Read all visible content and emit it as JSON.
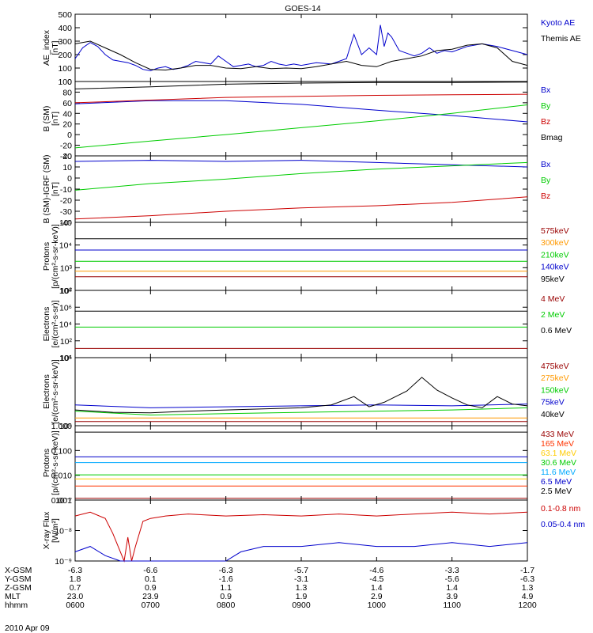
{
  "title": "GOES-14",
  "date": "2010 Apr 09",
  "footer": {
    "row_labels": [
      "X-GSM",
      "Y-GSM",
      "Z-GSM",
      "MLT",
      "hhmm"
    ],
    "columns": [
      [
        "-6.3",
        "1.8",
        "0.7",
        "23.0",
        "0600"
      ],
      [
        "-6.6",
        "0.1",
        "0.9",
        "23.9",
        "0700"
      ],
      [
        "-6.3",
        "-1.6",
        "1.1",
        "0.9",
        "0800"
      ],
      [
        "-5.7",
        "-3.1",
        "1.3",
        "1.9",
        "0900"
      ],
      [
        "-4.6",
        "-4.5",
        "1.4",
        "2.9",
        "1000"
      ],
      [
        "-3.3",
        "-5.6",
        "1.4",
        "3.9",
        "1100"
      ],
      [
        "-1.7",
        "-6.3",
        "1.3",
        "4.9",
        "1200"
      ]
    ]
  },
  "chart_data": [
    {
      "type": "line",
      "id": "ae",
      "ylabel_lines": [
        "AE_index",
        "[nT]"
      ],
      "ylim": [
        0,
        500
      ],
      "yscale": "linear",
      "yticks": [
        "0",
        "100",
        "200",
        "300",
        "400",
        "500"
      ],
      "xlim": [
        6.0,
        12.0
      ],
      "series": [
        {
          "name": "Kyoto AE",
          "color": "#0000cc",
          "x": [
            6.0,
            6.1,
            6.2,
            6.3,
            6.4,
            6.5,
            6.6,
            6.7,
            6.8,
            6.9,
            7.0,
            7.1,
            7.2,
            7.3,
            7.4,
            7.5,
            7.6,
            7.7,
            7.8,
            7.9,
            8.0,
            8.1,
            8.2,
            8.3,
            8.4,
            8.5,
            8.6,
            8.7,
            8.8,
            8.9,
            9.0,
            9.2,
            9.4,
            9.6,
            9.7,
            9.8,
            9.9,
            10.0,
            10.05,
            10.1,
            10.15,
            10.2,
            10.3,
            10.4,
            10.5,
            10.6,
            10.7,
            10.8,
            10.9,
            11.0,
            11.2,
            11.4,
            11.6,
            11.8,
            12.0
          ],
          "y": [
            170,
            250,
            290,
            260,
            200,
            160,
            150,
            140,
            120,
            90,
            80,
            100,
            110,
            90,
            100,
            120,
            150,
            140,
            130,
            190,
            150,
            110,
            120,
            130,
            110,
            120,
            150,
            130,
            120,
            130,
            120,
            140,
            130,
            170,
            350,
            200,
            250,
            200,
            420,
            260,
            360,
            330,
            230,
            210,
            190,
            210,
            250,
            210,
            230,
            220,
            260,
            280,
            260,
            230,
            200
          ]
        },
        {
          "name": "Themis AE",
          "color": "#000000",
          "x": [
            6.0,
            6.2,
            6.4,
            6.6,
            6.8,
            7.0,
            7.2,
            7.4,
            7.6,
            7.8,
            8.0,
            8.2,
            8.4,
            8.6,
            8.8,
            9.0,
            9.2,
            9.4,
            9.6,
            9.8,
            10.0,
            10.2,
            10.4,
            10.6,
            10.8,
            11.0,
            11.2,
            11.4,
            11.6,
            11.8,
            12.0
          ],
          "y": [
            280,
            300,
            250,
            200,
            140,
            90,
            85,
            100,
            120,
            120,
            100,
            95,
            110,
            95,
            100,
            95,
            110,
            130,
            150,
            120,
            110,
            150,
            170,
            190,
            230,
            240,
            270,
            280,
            250,
            150,
            120
          ]
        }
      ]
    },
    {
      "type": "line",
      "id": "bsm",
      "ylabel_lines": [
        "B (SM)",
        "[nT]"
      ],
      "ylim": [
        -40,
        100
      ],
      "yscale": "linear",
      "yticks": [
        "-40",
        "-20",
        "0",
        "20",
        "40",
        "60",
        "80",
        "100"
      ],
      "xlim": [
        6.0,
        12.0
      ],
      "series": [
        {
          "name": "Bx",
          "color": "#0000cc",
          "x": [
            6.0,
            7.0,
            8.0,
            9.0,
            10.0,
            11.0,
            12.0
          ],
          "y": [
            58,
            64,
            64,
            57,
            46,
            36,
            24
          ]
        },
        {
          "name": "By",
          "color": "#00cc00",
          "x": [
            6.0,
            7.0,
            8.0,
            9.0,
            10.0,
            11.0,
            12.0
          ],
          "y": [
            -25,
            -12,
            0,
            13,
            26,
            40,
            56
          ]
        },
        {
          "name": "Bz",
          "color": "#cc0000",
          "x": [
            6.0,
            7.0,
            8.0,
            9.0,
            10.0,
            11.0,
            12.0
          ],
          "y": [
            60,
            65,
            70,
            72,
            74,
            75,
            76
          ]
        },
        {
          "name": "Bmag",
          "color": "#000000",
          "x": [
            6.0,
            7.0,
            8.0,
            9.0,
            10.0,
            11.0,
            12.0
          ],
          "y": [
            86,
            90,
            95,
            97,
            98,
            98,
            99
          ]
        }
      ]
    },
    {
      "type": "line",
      "id": "bigrf",
      "ylabel_lines": [
        "B (SM)-IGRF (SM)",
        "[nT]"
      ],
      "ylim": [
        -40,
        20
      ],
      "yscale": "linear",
      "yticks": [
        "-40",
        "-30",
        "-20",
        "-10",
        "0",
        "10",
        "20"
      ],
      "xlim": [
        6.0,
        12.0
      ],
      "series": [
        {
          "name": "Bx",
          "color": "#0000cc",
          "x": [
            6.0,
            7.0,
            8.0,
            9.0,
            10.0,
            11.0,
            12.0
          ],
          "y": [
            15,
            16,
            15,
            16,
            14,
            12,
            10
          ]
        },
        {
          "name": "By",
          "color": "#00cc00",
          "x": [
            6.0,
            7.0,
            8.0,
            9.0,
            10.0,
            11.0,
            12.0
          ],
          "y": [
            -11,
            -5,
            -1,
            4,
            8,
            11,
            14
          ]
        },
        {
          "name": "Bz",
          "color": "#cc0000",
          "x": [
            6.0,
            7.0,
            8.0,
            9.0,
            10.0,
            11.0,
            12.0
          ],
          "y": [
            -37,
            -34,
            -30,
            -27,
            -25,
            -22,
            -17
          ]
        }
      ]
    },
    {
      "type": "line",
      "id": "protons_kev",
      "ylabel_lines": [
        "Protons",
        "[p/(cm²-s-sr-keV)]"
      ],
      "ylim": [
        100,
        100000
      ],
      "yscale": "log",
      "yticks": [
        "10²",
        "10³",
        "10⁴",
        "10⁵"
      ],
      "xlim": [
        6.0,
        12.0
      ],
      "series": [
        {
          "name": "575keV",
          "color": "#990000",
          "x": [
            6.0,
            12.0
          ],
          "y": [
            400,
            400
          ]
        },
        {
          "name": "300keV",
          "color": "#ff9900",
          "x": [
            6.0,
            12.0
          ],
          "y": [
            700,
            700
          ]
        },
        {
          "name": "210keV",
          "color": "#00cc00",
          "x": [
            6.0,
            12.0
          ],
          "y": [
            1900,
            1900
          ]
        },
        {
          "name": "140keV",
          "color": "#0000cc",
          "x": [
            6.0,
            12.0
          ],
          "y": [
            6000,
            6000
          ]
        },
        {
          "name": "95keV",
          "color": "#000000",
          "x": [
            6.0,
            12.0
          ],
          "y": [
            19000,
            19000
          ]
        }
      ]
    },
    {
      "type": "line",
      "id": "electrons_mev",
      "ylabel_lines": [
        "Electrons",
        "[e/(cm²-s-sr)]"
      ],
      "ylim": [
        10,
        100000000
      ],
      "yscale": "log",
      "yticks": [
        "10¹",
        "10²",
        "10⁴",
        "10⁶",
        "10⁸"
      ],
      "xlim": [
        6.0,
        12.0
      ],
      "series": [
        {
          "name": "4 MeV",
          "color": "#990000",
          "x": [
            6.0,
            12.0
          ],
          "y": [
            90,
            90
          ]
        },
        {
          "name": "2 MeV",
          "color": "#00cc00",
          "x": [
            6.0,
            12.0
          ],
          "y": [
            15000,
            15000
          ]
        },
        {
          "name": "0.6 MeV",
          "color": "#000000",
          "x": [
            6.0,
            12.0
          ],
          "y": [
            700000,
            700000
          ]
        }
      ]
    },
    {
      "type": "line",
      "id": "electrons_kev",
      "ylabel_lines": [
        "Electrons",
        "[e/(cm²-s-sr-keV)]"
      ],
      "ylim": [
        50000,
        1000000
      ],
      "yscale": "log",
      "yticks": [
        "10⁵",
        "10⁶"
      ],
      "xlim": [
        6.0,
        12.0
      ],
      "series": [
        {
          "name": "475keV",
          "color": "#990000",
          "x": [
            6.0,
            12.0
          ],
          "y": [
            60000,
            60000
          ]
        },
        {
          "name": "275keV",
          "color": "#ff9900",
          "x": [
            6.0,
            12.0
          ],
          "y": [
            70000,
            70000
          ]
        },
        {
          "name": "150keV",
          "color": "#00cc00",
          "x": [
            6.0,
            7.0,
            8.0,
            9.0,
            10.0,
            11.0,
            12.0
          ],
          "y": [
            95000,
            80000,
            85000,
            90000,
            95000,
            100000,
            110000
          ]
        },
        {
          "name": "75keV",
          "color": "#0000cc",
          "x": [
            6.0,
            7.0,
            8.0,
            9.0,
            10.0,
            11.0,
            12.0
          ],
          "y": [
            125000,
            110000,
            115000,
            120000,
            125000,
            120000,
            130000
          ]
        },
        {
          "name": "40keV",
          "color": "#000000",
          "x": [
            6.0,
            6.5,
            7.0,
            7.5,
            8.0,
            8.5,
            9.0,
            9.4,
            9.7,
            9.9,
            10.1,
            10.4,
            10.6,
            10.8,
            11.0,
            11.2,
            11.4,
            11.6,
            11.8,
            12.0
          ],
          "y": [
            100000,
            90000,
            88000,
            95000,
            100000,
            105000,
            110000,
            125000,
            180000,
            115000,
            140000,
            230000,
            420000,
            240000,
            170000,
            125000,
            110000,
            180000,
            130000,
            120000
          ]
        }
      ]
    },
    {
      "type": "line",
      "id": "protons_mev",
      "ylabel_lines": [
        "Protons",
        "[p/(cm²-s-sr-keV)]"
      ],
      "ylim": [
        0.001,
        1.5
      ],
      "yscale": "log",
      "yticks": [
        "0.001",
        "0.010",
        "0.100",
        "1.000"
      ],
      "xlim": [
        6.0,
        12.0
      ],
      "series": [
        {
          "name": "433 MeV",
          "color": "#990000",
          "x": [
            6.0,
            12.0
          ],
          "y": [
            0.0012,
            0.0012
          ]
        },
        {
          "name": "165 MeV",
          "color": "#ff3300",
          "x": [
            6.0,
            12.0
          ],
          "y": [
            0.004,
            0.004
          ]
        },
        {
          "name": "63.1 MeV",
          "color": "#ffcc00",
          "x": [
            6.0,
            12.0
          ],
          "y": [
            0.008,
            0.008
          ]
        },
        {
          "name": "30.6 MeV",
          "color": "#00cc00",
          "x": [
            6.0,
            12.0
          ],
          "y": [
            0.012,
            0.012
          ]
        },
        {
          "name": "11.6 MeV",
          "color": "#00aaff",
          "x": [
            6.0,
            12.0
          ],
          "y": [
            0.04,
            0.04
          ]
        },
        {
          "name": "6.5 MeV",
          "color": "#0000cc",
          "x": [
            6.0,
            12.0
          ],
          "y": [
            0.07,
            0.07
          ]
        },
        {
          "name": "2.5 MeV",
          "color": "#000000",
          "x": [
            6.0,
            12.0
          ],
          "y": [
            0.8,
            0.8
          ]
        }
      ]
    },
    {
      "type": "line",
      "id": "xray",
      "ylabel_lines": [
        "X-ray Flux",
        "[W/m²]"
      ],
      "ylim": [
        1e-09,
        1e-07
      ],
      "yscale": "log",
      "yticks": [
        "10⁻⁹",
        "10⁻⁸",
        "10⁻⁷"
      ],
      "xlim": [
        6.0,
        12.0
      ],
      "series": [
        {
          "name": "0.1-0.8 nm",
          "color": "#cc0000",
          "x": [
            6.0,
            6.2,
            6.4,
            6.5,
            6.6,
            6.65,
            6.7,
            6.75,
            6.8,
            6.9,
            7.0,
            7.2,
            7.5,
            8.0,
            8.5,
            9.0,
            9.5,
            10.0,
            10.5,
            11.0,
            11.5,
            12.0
          ],
          "y": [
            3e-08,
            4e-08,
            2.5e-08,
            8e-09,
            2e-09,
            1e-09,
            6e-09,
            1e-09,
            3e-09,
            2e-08,
            2.5e-08,
            3e-08,
            3.5e-08,
            3e-08,
            3.3e-08,
            3e-08,
            3.5e-08,
            3e-08,
            3.5e-08,
            4e-08,
            3.5e-08,
            4e-08
          ]
        },
        {
          "name": "0.05-0.4 nm",
          "color": "#0000cc",
          "x": [
            6.0,
            6.2,
            6.4,
            6.6,
            7.0,
            7.5,
            8.0,
            8.2,
            8.5,
            9.0,
            9.5,
            10.0,
            10.5,
            11.0,
            11.5,
            12.0
          ],
          "y": [
            2e-09,
            3e-09,
            1.5e-09,
            1e-09,
            1e-09,
            1e-09,
            1e-09,
            2e-09,
            3e-09,
            3e-09,
            4e-09,
            3e-09,
            3e-09,
            4e-09,
            3e-09,
            4e-09
          ]
        }
      ]
    }
  ]
}
